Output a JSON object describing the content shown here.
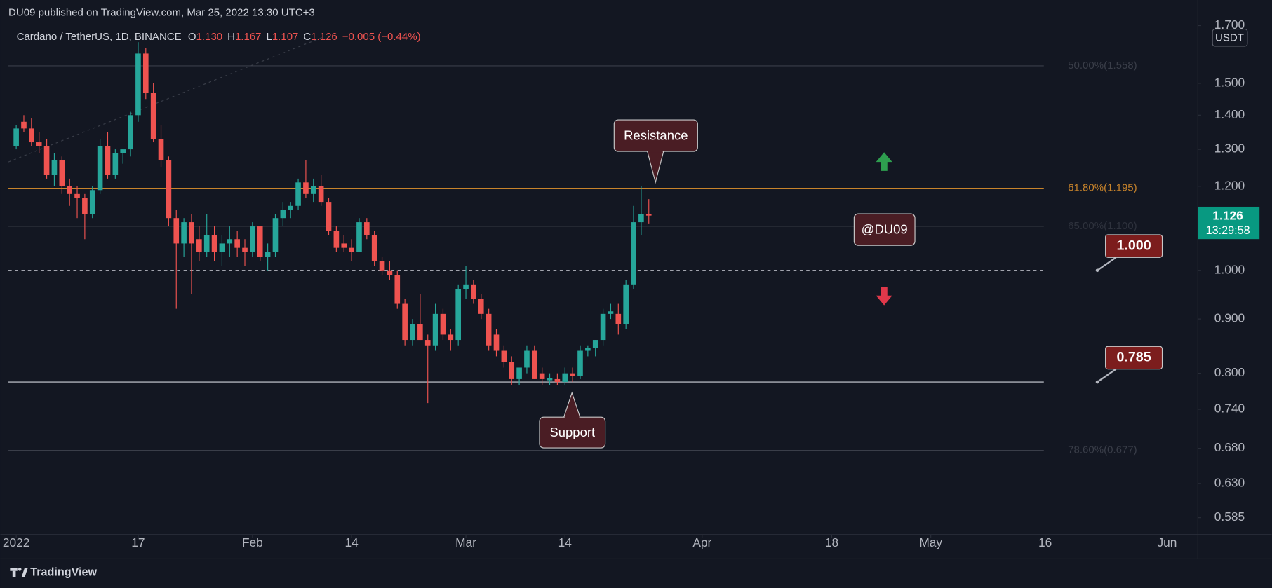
{
  "header": {
    "published": "DU09 published on TradingView.com, Mar 25, 2022 13:30 UTC+3",
    "symbol": "Cardano / TetherUS, 1D, BINANCE",
    "ohlc": [
      [
        "O",
        "1.130"
      ],
      [
        "H",
        "1.167"
      ],
      [
        "L",
        "1.107"
      ],
      [
        "C",
        "1.126"
      ]
    ],
    "change": "−0.005 (−0.44%)"
  },
  "footer": {
    "brand": "TradingView"
  },
  "chart_data": {
    "type": "candlestick",
    "currency": "USDT",
    "log_scale": true,
    "grid": false,
    "up_color": "#26a69a",
    "down_color": "#ef5350",
    "x": [
      "2022-01-01",
      "2022-01-02",
      "2022-01-03",
      "2022-01-04",
      "2022-01-05",
      "2022-01-06",
      "2022-01-07",
      "2022-01-08",
      "2022-01-09",
      "2022-01-10",
      "2022-01-11",
      "2022-01-12",
      "2022-01-13",
      "2022-01-14",
      "2022-01-15",
      "2022-01-16",
      "2022-01-17",
      "2022-01-18",
      "2022-01-19",
      "2022-01-20",
      "2022-01-21",
      "2022-01-22",
      "2022-01-23",
      "2022-01-24",
      "2022-01-25",
      "2022-01-26",
      "2022-01-27",
      "2022-01-28",
      "2022-01-29",
      "2022-01-30",
      "2022-01-31",
      "2022-02-01",
      "2022-02-02",
      "2022-02-03",
      "2022-02-04",
      "2022-02-05",
      "2022-02-06",
      "2022-02-07",
      "2022-02-08",
      "2022-02-09",
      "2022-02-10",
      "2022-02-11",
      "2022-02-12",
      "2022-02-13",
      "2022-02-14",
      "2022-02-15",
      "2022-02-16",
      "2022-02-17",
      "2022-02-18",
      "2022-02-19",
      "2022-02-20",
      "2022-02-21",
      "2022-02-22",
      "2022-02-23",
      "2022-02-24",
      "2022-02-25",
      "2022-02-26",
      "2022-02-27",
      "2022-02-28",
      "2022-03-01",
      "2022-03-02",
      "2022-03-03",
      "2022-03-04",
      "2022-03-05",
      "2022-03-06",
      "2022-03-07",
      "2022-03-08",
      "2022-03-09",
      "2022-03-10",
      "2022-03-11",
      "2022-03-12",
      "2022-03-13",
      "2022-03-14",
      "2022-03-15",
      "2022-03-16",
      "2022-03-17",
      "2022-03-18",
      "2022-03-19",
      "2022-03-20",
      "2022-03-21",
      "2022-03-22",
      "2022-03-23",
      "2022-03-24",
      "2022-03-25"
    ],
    "open": [
      1.31,
      1.38,
      1.36,
      1.32,
      1.31,
      1.23,
      1.27,
      1.2,
      1.18,
      1.17,
      1.13,
      1.19,
      1.31,
      1.23,
      1.29,
      1.3,
      1.4,
      1.6,
      1.47,
      1.33,
      1.27,
      1.12,
      1.06,
      1.11,
      1.07,
      1.04,
      1.08,
      1.04,
      1.06,
      1.07,
      1.05,
      1.04,
      1.1,
      1.03,
      1.04,
      1.12,
      1.14,
      1.15,
      1.21,
      1.18,
      1.2,
      1.16,
      1.09,
      1.06,
      1.05,
      1.04,
      1.11,
      1.08,
      1.02,
      1.0,
      0.99,
      0.93,
      0.86,
      0.89,
      0.86,
      0.85,
      0.91,
      0.87,
      0.86,
      0.96,
      0.97,
      0.94,
      0.91,
      0.87,
      0.84,
      0.82,
      0.79,
      0.81,
      0.84,
      0.8,
      0.788,
      0.79,
      0.785,
      0.8,
      0.795,
      0.84,
      0.845,
      0.86,
      0.91,
      0.91,
      0.89,
      0.97,
      1.11,
      1.13
    ],
    "high": [
      1.37,
      1.4,
      1.39,
      1.35,
      1.33,
      1.29,
      1.28,
      1.22,
      1.2,
      1.18,
      1.2,
      1.33,
      1.35,
      1.3,
      1.3,
      1.41,
      1.64,
      1.62,
      1.5,
      1.37,
      1.28,
      1.14,
      1.12,
      1.13,
      1.1,
      1.13,
      1.1,
      1.08,
      1.1,
      1.09,
      1.07,
      1.11,
      1.1,
      1.06,
      1.13,
      1.16,
      1.16,
      1.22,
      1.27,
      1.22,
      1.23,
      1.17,
      1.1,
      1.08,
      1.07,
      1.12,
      1.12,
      1.09,
      1.03,
      1.02,
      1.0,
      0.94,
      0.9,
      0.95,
      0.87,
      0.93,
      0.92,
      0.88,
      0.97,
      1.01,
      0.98,
      0.95,
      0.92,
      0.88,
      0.85,
      0.83,
      0.81,
      0.85,
      0.85,
      0.81,
      0.8,
      0.8,
      0.81,
      0.81,
      0.85,
      0.85,
      0.86,
      0.92,
      0.93,
      0.93,
      0.98,
      1.15,
      1.2,
      1.167
    ],
    "low": [
      1.3,
      1.35,
      1.31,
      1.29,
      1.22,
      1.2,
      1.18,
      1.15,
      1.12,
      1.07,
      1.12,
      1.18,
      1.22,
      1.22,
      1.26,
      1.28,
      1.38,
      1.45,
      1.32,
      1.25,
      1.1,
      0.92,
      1.03,
      0.95,
      1.02,
      1.03,
      1.02,
      1.01,
      1.03,
      1.03,
      1.01,
      1.03,
      1.02,
      1.0,
      1.03,
      1.1,
      1.12,
      1.14,
      1.17,
      1.16,
      1.15,
      1.08,
      1.04,
      1.04,
      1.02,
      1.04,
      1.07,
      1.01,
      0.99,
      0.98,
      0.92,
      0.85,
      0.85,
      0.86,
      0.75,
      0.84,
      0.86,
      0.84,
      0.85,
      0.94,
      0.93,
      0.9,
      0.84,
      0.83,
      0.81,
      0.78,
      0.78,
      0.8,
      0.79,
      0.78,
      0.78,
      0.78,
      0.78,
      0.785,
      0.79,
      0.83,
      0.83,
      0.85,
      0.9,
      0.87,
      0.88,
      0.96,
      1.08,
      1.107
    ],
    "close": [
      1.36,
      1.36,
      1.32,
      1.31,
      1.23,
      1.27,
      1.2,
      1.18,
      1.17,
      1.13,
      1.19,
      1.31,
      1.23,
      1.29,
      1.3,
      1.4,
      1.6,
      1.47,
      1.33,
      1.27,
      1.12,
      1.06,
      1.11,
      1.06,
      1.04,
      1.08,
      1.04,
      1.06,
      1.07,
      1.05,
      1.04,
      1.1,
      1.03,
      1.04,
      1.12,
      1.14,
      1.15,
      1.21,
      1.18,
      1.2,
      1.16,
      1.09,
      1.05,
      1.05,
      1.04,
      1.11,
      1.08,
      1.02,
      1.0,
      0.99,
      0.93,
      0.86,
      0.89,
      0.86,
      0.85,
      0.91,
      0.87,
      0.86,
      0.96,
      0.97,
      0.94,
      0.91,
      0.85,
      0.84,
      0.82,
      0.79,
      0.81,
      0.84,
      0.79,
      0.79,
      0.792,
      0.785,
      0.8,
      0.795,
      0.84,
      0.845,
      0.86,
      0.91,
      0.915,
      0.89,
      0.97,
      1.11,
      1.13,
      1.126
    ],
    "ylim": [
      0.564,
      1.797
    ],
    "yticks": [
      0.585,
      {
        "value": 0.63,
        "label": "0.630"
      },
      {
        "value": 0.68,
        "label": "0.680"
      },
      {
        "value": 0.74,
        "label": "0.740"
      },
      {
        "value": 0.8,
        "label": "0.800"
      },
      {
        "value": 0.9,
        "label": "0.900"
      },
      {
        "value": 1,
        "label": "1.000"
      },
      {
        "value": 1.2,
        "label": "1.200"
      },
      {
        "value": 1.3,
        "label": "1.300"
      },
      {
        "value": 1.4,
        "label": "1.400"
      },
      {
        "value": 1.5,
        "label": "1.500"
      },
      {
        "value": 1.7,
        "label": "1.700"
      }
    ],
    "xticks": [
      {
        "value": "2022-01-01",
        "label": "2022"
      },
      {
        "value": "2022-01-17",
        "label": "17"
      },
      {
        "value": "2022-02-01",
        "label": "Feb"
      },
      {
        "value": "2022-02-14",
        "label": "14"
      },
      {
        "value": "2022-03-01",
        "label": "Mar"
      },
      {
        "value": "2022-03-14",
        "label": "14"
      },
      {
        "value": "2022-04-01",
        "label": "Apr"
      },
      {
        "value": "2022-04-18",
        "label": "18"
      },
      {
        "value": "2022-05-01",
        "label": "May"
      },
      {
        "value": "2022-05-16",
        "label": "16"
      },
      {
        "value": "2022-06-01",
        "label": "Jun"
      }
    ],
    "fib_levels": [
      {
        "value": 1.558,
        "label": "50.00%(1.558)",
        "color": "#3a3e49"
      },
      {
        "value": 1.195,
        "label": "61.80%(1.195)",
        "color": "#c7832b"
      },
      {
        "value": 1.1,
        "label": "65.00%(1.100)",
        "color": "#2e323d"
      },
      {
        "value": 0.677,
        "label": "78.60%(0.677)",
        "color": "#3a3e49"
      }
    ],
    "horizontal_lines": [
      {
        "value": 1,
        "label": "1.000",
        "style": "dashed"
      },
      {
        "value": 0.785,
        "label": "0.785",
        "style": "solid"
      }
    ],
    "last_price": {
      "value": 1.126,
      "label": "1.126",
      "countdown": "13:29:58"
    },
    "annotations": [
      "Resistance",
      "Support",
      "@DU09"
    ]
  }
}
